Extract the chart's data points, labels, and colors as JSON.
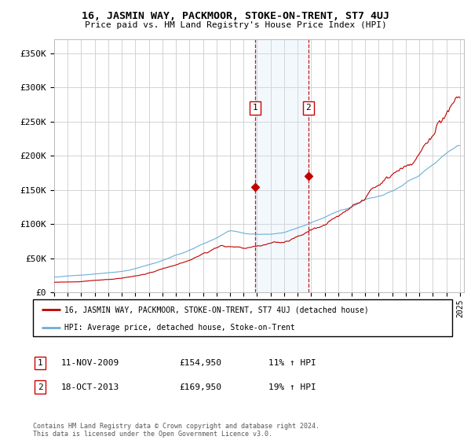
{
  "title": "16, JASMIN WAY, PACKMOOR, STOKE-ON-TRENT, ST7 4UJ",
  "subtitle": "Price paid vs. HM Land Registry's House Price Index (HPI)",
  "ylim": [
    0,
    370000
  ],
  "yticks": [
    0,
    50000,
    100000,
    150000,
    200000,
    250000,
    300000,
    350000
  ],
  "ytick_labels": [
    "£0",
    "£50K",
    "£100K",
    "£150K",
    "£200K",
    "£250K",
    "£300K",
    "£350K"
  ],
  "hpi_color": "#6baed6",
  "price_color": "#c00000",
  "marker1_date": 2009.87,
  "marker1_price": 154950,
  "marker2_date": 2013.8,
  "marker2_price": 169950,
  "legend_line1": "16, JASMIN WAY, PACKMOOR, STOKE-ON-TRENT, ST7 4UJ (detached house)",
  "legend_line2": "HPI: Average price, detached house, Stoke-on-Trent",
  "shade_color": "#d0e4f5",
  "background_color": "#ffffff",
  "grid_color": "#cccccc",
  "row1_num": "1",
  "row1_date": "11-NOV-2009",
  "row1_price": "£154,950",
  "row1_pct": "11% ↑ HPI",
  "row2_num": "2",
  "row2_date": "18-OCT-2013",
  "row2_price": "£169,950",
  "row2_pct": "19% ↑ HPI",
  "footer": "Contains HM Land Registry data © Crown copyright and database right 2024.\nThis data is licensed under the Open Government Licence v3.0."
}
